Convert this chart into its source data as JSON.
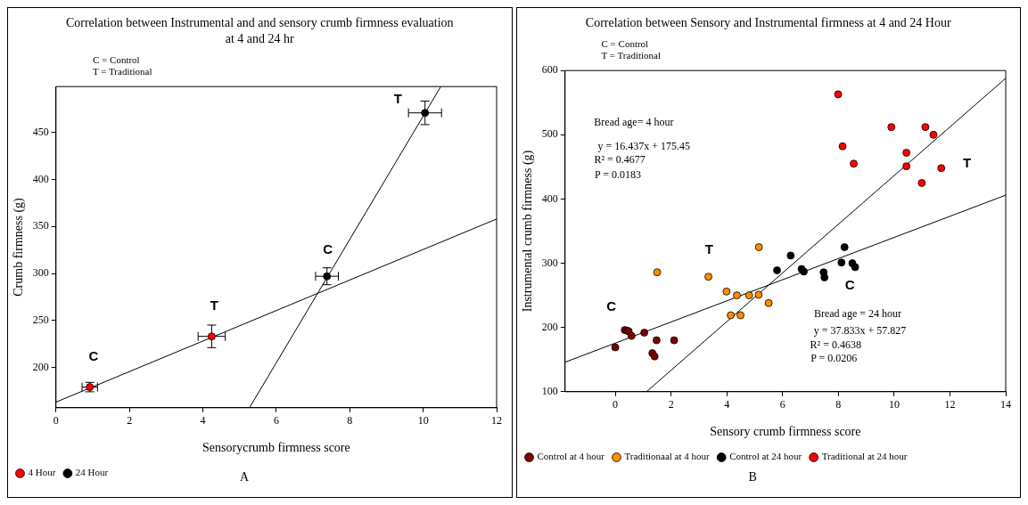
{
  "chart_data": [
    {
      "type": "scatter",
      "title": "Correlation between Instrumental and  and sensory crumb firmness evaluation at 4 and 24 hr",
      "xlabel": "Sensorycrumb firmness score",
      "ylabel": "Crumb firmness (g)",
      "annotations": [
        "C = Control",
        "T = Traditional",
        "C",
        "T",
        "C",
        "T",
        "A"
      ],
      "series": [
        {
          "name": "4 Hour",
          "color": "#ff0000",
          "x": [
            0.92,
            4.24
          ],
          "values": [
            179,
            233
          ],
          "errors": [
            5,
            12
          ],
          "xerrors": [
            0.21,
            0.37
          ]
        },
        {
          "name": "24 Hour",
          "color": "#000000",
          "x": [
            7.38,
            10.05
          ],
          "values": [
            297,
            471
          ],
          "errors": [
            9,
            12.5
          ],
          "xerrors": [
            0.31,
            0.45
          ]
        },
        {
          "type": "line",
          "marker": "none",
          "color": "#000000",
          "x": [
            0,
            12
          ],
          "values": [
            163,
            358
          ]
        },
        {
          "type": "line",
          "marker": "none",
          "color": "#000000",
          "x": [
            5.27,
            10.48
          ],
          "values": [
            157,
            499
          ]
        }
      ],
      "xlim": [
        0,
        12
      ],
      "xticks": [
        0,
        2,
        4,
        6,
        8,
        10,
        12
      ],
      "ylim": [
        157,
        499
      ],
      "yticks": [
        200,
        250,
        300,
        350,
        400,
        450
      ],
      "legend": "bottom left",
      "marker": "circle"
    },
    {
      "type": "scatter",
      "title": "Correlation between Sensory and Instrumental firmness at 4 and 24 Hour",
      "xlabel": "Sensory crumb firmness score",
      "ylabel": "Instrumental crumb firmness (g)",
      "annotations": [
        "C = Control",
        "T = Traditional",
        "Bread age= 4 hour",
        "y = 16.437x + 175.45",
        "R² = 0.4677",
        "P = 0.0183",
        "Bread age = 24 hour",
        "y = 37.833x + 57.827",
        "R² = 0.4638",
        "P = 0.0206",
        "C",
        "T",
        "C",
        "T",
        "B"
      ],
      "series": [
        {
          "name": "Control at 4 hour",
          "color": "#800000",
          "x": [
            0,
            0.34,
            0.43,
            0.48,
            0.58,
            1.04,
            1.48,
            1.33,
            1.41,
            2.11
          ],
          "values": [
            169,
            196,
            195,
            194,
            187,
            192,
            180,
            160,
            155,
            180
          ]
        },
        {
          "name": "Traditionaal at 4 hour",
          "color": "#ff8c00",
          "x": [
            1.5,
            3.34,
            3.99,
            4.36,
            4.8,
            5.14,
            5.15,
            5.5,
            4.14,
            4.49
          ],
          "values": [
            286,
            279,
            256,
            250,
            250,
            251,
            325,
            238,
            219,
            219
          ]
        },
        {
          "name": "Control at 24 hour",
          "color": "#000000",
          "x": [
            5.8,
            6.29,
            6.68,
            6.76,
            7.47,
            7.5,
            8.11,
            8.22,
            8.5,
            8.6
          ],
          "values": [
            289,
            312,
            291,
            287,
            286,
            278,
            301,
            325,
            300,
            294
          ]
        },
        {
          "name": "Traditional at 24 hour",
          "color": "#ff0000",
          "x": [
            7.99,
            8.15,
            8.55,
            9.9,
            10.44,
            10.44,
            11.12,
            11.41,
            10.99,
            11.69
          ],
          "values": [
            563,
            482,
            455,
            512,
            472,
            451,
            512,
            500,
            425,
            448
          ]
        },
        {
          "type": "line",
          "marker": "none",
          "color": "#000000",
          "x": [
            -1.8,
            14
          ],
          "values": [
            146,
            406
          ]
        },
        {
          "type": "line",
          "marker": "none",
          "color": "#000000",
          "x": [
            1.12,
            14
          ],
          "values": [
            100,
            588
          ]
        }
      ],
      "xlim": [
        -1.8,
        14
      ],
      "xticks": [
        0,
        2,
        4,
        6,
        8,
        10,
        12,
        14
      ],
      "ylim": [
        100,
        600
      ],
      "yticks": [
        100,
        200,
        300,
        400,
        500,
        600
      ],
      "legend": "bottom left",
      "marker": "circle"
    }
  ]
}
